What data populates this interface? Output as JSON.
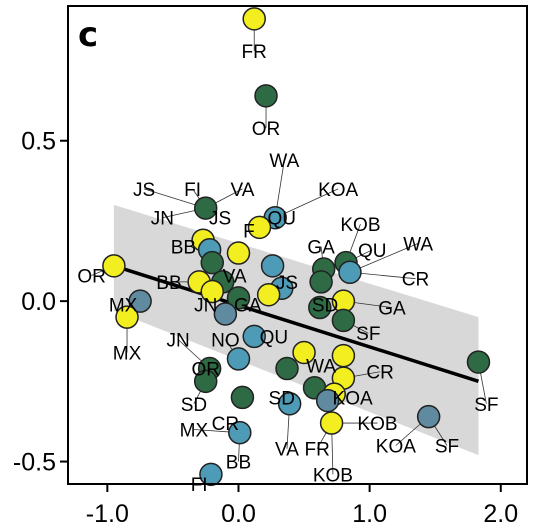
{
  "chart_data": {
    "type": "scatter",
    "panel_label": "c",
    "xlim": [
      -1.3,
      2.2
    ],
    "ylim": [
      -0.57,
      0.92
    ],
    "xticks": [
      -1.0,
      0.0,
      1.0,
      2.0
    ],
    "xtick_labels": [
      "-1.0",
      "0.0",
      "1.0",
      "2.0"
    ],
    "yticks": [
      -0.5,
      0.0,
      0.5
    ],
    "ytick_labels": [
      "-0.5",
      "0.0",
      "0.5"
    ],
    "grid": false,
    "colors": {
      "yellow": "#f2ee1f",
      "green": "#2e6b45",
      "blue": "#4e9bb8",
      "slate": "#5f8aa0",
      "band": "#d4d4d4",
      "line": "#000000"
    },
    "regression": {
      "x": [
        -0.95,
        1.83
      ],
      "y": [
        0.11,
        -0.25
      ],
      "band_upper": [
        0.3,
        -0.05
      ],
      "band_lower": [
        -0.03,
        -0.48
      ]
    },
    "points": [
      {
        "x": 0.12,
        "y": 0.88,
        "color": "yellow",
        "label": "FR"
      },
      {
        "x": 0.21,
        "y": 0.64,
        "color": "green",
        "label": "OR"
      },
      {
        "x": -0.25,
        "y": 0.29,
        "color": "green",
        "label": "FI"
      },
      {
        "x": 0.28,
        "y": 0.26,
        "color": "blue",
        "label": "QU"
      },
      {
        "x": 0.16,
        "y": 0.23,
        "color": "yellow",
        "label": "F"
      },
      {
        "x": -0.27,
        "y": 0.19,
        "color": "yellow",
        "label": "BB"
      },
      {
        "x": -0.22,
        "y": 0.16,
        "color": "blue",
        "label": "JS"
      },
      {
        "x": 0.0,
        "y": 0.15,
        "color": "yellow",
        "label": "VA"
      },
      {
        "x": -0.95,
        "y": 0.11,
        "color": "yellow",
        "label": "OR"
      },
      {
        "x": -0.2,
        "y": 0.12,
        "color": "green",
        "label": "JN"
      },
      {
        "x": 0.26,
        "y": 0.11,
        "color": "blue",
        "label": "JS"
      },
      {
        "x": 0.65,
        "y": 0.1,
        "color": "green",
        "label": "GA"
      },
      {
        "x": 0.82,
        "y": 0.12,
        "color": "green",
        "label": "QU"
      },
      {
        "x": 0.85,
        "y": 0.09,
        "color": "blue",
        "label": "CR"
      },
      {
        "x": 0.63,
        "y": 0.06,
        "color": "green",
        "label": "WA"
      },
      {
        "x": -0.3,
        "y": 0.06,
        "color": "yellow",
        "label": "BB"
      },
      {
        "x": -0.12,
        "y": 0.06,
        "color": "green",
        "label": "VA"
      },
      {
        "x": 0.33,
        "y": 0.04,
        "color": "blue",
        "label": "JS"
      },
      {
        "x": -0.2,
        "y": 0.03,
        "color": "yellow",
        "label": "JN"
      },
      {
        "x": 0.0,
        "y": 0.01,
        "color": "green",
        "label": "GA"
      },
      {
        "x": 0.23,
        "y": 0.02,
        "color": "yellow",
        "label": "QU"
      },
      {
        "x": -0.75,
        "y": 0.0,
        "color": "slate",
        "label": "MX"
      },
      {
        "x": 0.8,
        "y": 0.0,
        "color": "yellow",
        "label": "GA"
      },
      {
        "x": 0.62,
        "y": -0.02,
        "color": "green",
        "label": "SD"
      },
      {
        "x": -0.85,
        "y": -0.05,
        "color": "yellow",
        "label": "MX"
      },
      {
        "x": -0.1,
        "y": -0.04,
        "color": "slate",
        "label": "NO"
      },
      {
        "x": 0.8,
        "y": -0.06,
        "color": "green",
        "label": "SF"
      },
      {
        "x": 0.12,
        "y": -0.11,
        "color": "blue",
        "label": "QU"
      },
      {
        "x": 0.5,
        "y": -0.16,
        "color": "yellow",
        "label": "WA"
      },
      {
        "x": 0.0,
        "y": -0.18,
        "color": "blue",
        "label": "QR"
      },
      {
        "x": 0.8,
        "y": -0.17,
        "color": "yellow",
        "label": "CR"
      },
      {
        "x": 1.83,
        "y": -0.19,
        "color": "green",
        "label": "SF"
      },
      {
        "x": -0.22,
        "y": -0.21,
        "color": "green",
        "label": "SD"
      },
      {
        "x": 0.37,
        "y": -0.21,
        "color": "green",
        "label": "SD"
      },
      {
        "x": 0.8,
        "y": -0.24,
        "color": "yellow",
        "label": "KOA"
      },
      {
        "x": -0.25,
        "y": -0.25,
        "color": "green",
        "label": "MX"
      },
      {
        "x": 0.58,
        "y": -0.27,
        "color": "green",
        "label": "VA"
      },
      {
        "x": 0.73,
        "y": -0.29,
        "color": "yellow",
        "label": "KOA"
      },
      {
        "x": 0.68,
        "y": -0.31,
        "color": "slate",
        "label": "KOB"
      },
      {
        "x": 0.03,
        "y": -0.3,
        "color": "green",
        "label": "CR"
      },
      {
        "x": 0.39,
        "y": -0.32,
        "color": "blue",
        "label": "VA"
      },
      {
        "x": 1.45,
        "y": -0.36,
        "color": "slate",
        "label": "SF"
      },
      {
        "x": 0.71,
        "y": -0.38,
        "color": "yellow",
        "label": "FR"
      },
      {
        "x": 0.01,
        "y": -0.41,
        "color": "blue",
        "label": "BB"
      },
      {
        "x": -0.21,
        "y": -0.54,
        "color": "blue",
        "label": "FI"
      }
    ],
    "labels": [
      {
        "text": "FR",
        "x": 0.12,
        "y": 0.78
      },
      {
        "text": "OR",
        "x": 0.21,
        "y": 0.54
      },
      {
        "text": "WA",
        "x": 0.35,
        "y": 0.44
      },
      {
        "text": "JS",
        "x": -0.72,
        "y": 0.35
      },
      {
        "text": "FI",
        "x": -0.35,
        "y": 0.35
      },
      {
        "text": "VA",
        "x": 0.03,
        "y": 0.35
      },
      {
        "text": "KOA",
        "x": 0.76,
        "y": 0.35
      },
      {
        "text": "JN",
        "x": -0.58,
        "y": 0.26
      },
      {
        "text": "JS",
        "x": -0.14,
        "y": 0.26
      },
      {
        "text": "QU",
        "x": 0.33,
        "y": 0.26
      },
      {
        "text": "KOB",
        "x": 0.93,
        "y": 0.24
      },
      {
        "text": "BB",
        "x": -0.42,
        "y": 0.17
      },
      {
        "text": "F",
        "x": 0.08,
        "y": 0.22
      },
      {
        "text": "GA",
        "x": 0.63,
        "y": 0.17
      },
      {
        "text": "QU",
        "x": 1.02,
        "y": 0.16
      },
      {
        "text": "WA",
        "x": 1.37,
        "y": 0.18
      },
      {
        "text": "OR",
        "x": -1.12,
        "y": 0.08
      },
      {
        "text": "BB",
        "x": -0.53,
        "y": 0.06
      },
      {
        "text": "VA",
        "x": -0.03,
        "y": 0.08
      },
      {
        "text": "JS",
        "x": 0.37,
        "y": 0.06
      },
      {
        "text": "CR",
        "x": 1.35,
        "y": 0.07
      },
      {
        "text": "MX",
        "x": -0.88,
        "y": -0.01
      },
      {
        "text": "JN",
        "x": -0.25,
        "y": -0.01
      },
      {
        "text": "GA",
        "x": 0.07,
        "y": -0.01
      },
      {
        "text": "SD",
        "x": 0.66,
        "y": -0.01
      },
      {
        "text": "GA",
        "x": 1.17,
        "y": -0.02
      },
      {
        "text": "JN",
        "x": -0.46,
        "y": -0.12
      },
      {
        "text": "NO",
        "x": -0.1,
        "y": -0.12
      },
      {
        "text": "QU",
        "x": 0.27,
        "y": -0.11
      },
      {
        "text": "SF",
        "x": 0.99,
        "y": -0.1
      },
      {
        "text": "MX",
        "x": -0.85,
        "y": -0.16
      },
      {
        "text": "OR",
        "x": -0.25,
        "y": -0.21
      },
      {
        "text": "WA",
        "x": 0.63,
        "y": -0.2
      },
      {
        "text": "CR",
        "x": 1.08,
        "y": -0.22
      },
      {
        "text": "SD",
        "x": -0.34,
        "y": -0.32
      },
      {
        "text": "SD",
        "x": 0.33,
        "y": -0.3
      },
      {
        "text": "KOA",
        "x": 0.87,
        "y": -0.3
      },
      {
        "text": "SF",
        "x": 1.89,
        "y": -0.32
      },
      {
        "text": "MX",
        "x": -0.34,
        "y": -0.4
      },
      {
        "text": "CR",
        "x": -0.1,
        "y": -0.38
      },
      {
        "text": "KOB",
        "x": 1.06,
        "y": -0.38
      },
      {
        "text": "KOA",
        "x": 1.2,
        "y": -0.45
      },
      {
        "text": "SF",
        "x": 1.59,
        "y": -0.45
      },
      {
        "text": "VA",
        "x": 0.37,
        "y": -0.46
      },
      {
        "text": "FR",
        "x": 0.6,
        "y": -0.46
      },
      {
        "text": "BB",
        "x": 0.0,
        "y": -0.5
      },
      {
        "text": "KOB",
        "x": 0.72,
        "y": -0.54
      },
      {
        "text": "FI",
        "x": -0.3,
        "y": -0.57
      }
    ]
  }
}
